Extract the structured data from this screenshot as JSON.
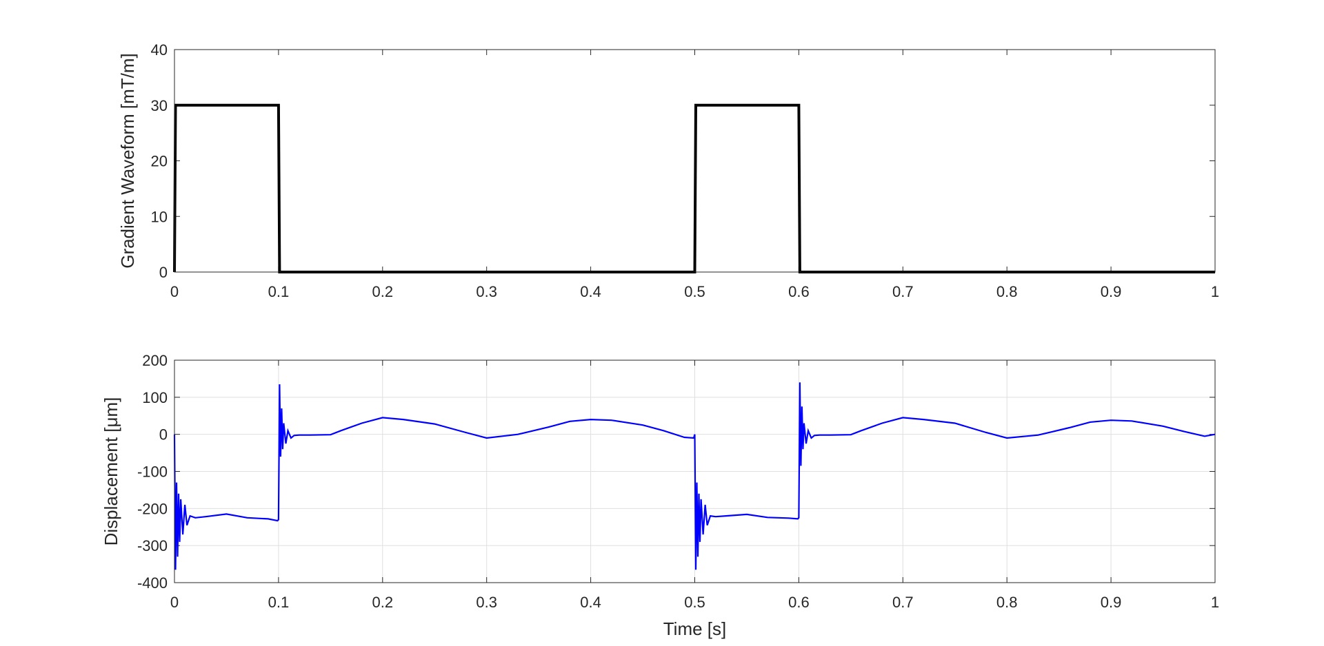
{
  "chart_data": [
    {
      "id": "gradient",
      "type": "line",
      "ylabel": "Gradient Waveform [mT/m]",
      "xlabel": "",
      "xlim": [
        0,
        1
      ],
      "ylim": [
        0,
        40
      ],
      "xticks": [
        0,
        0.1,
        0.2,
        0.3,
        0.4,
        0.5,
        0.6,
        0.7,
        0.8,
        0.9,
        1
      ],
      "xticklabels": [
        "0",
        "0.1",
        "0.2",
        "0.3",
        "0.4",
        "0.5",
        "0.6",
        "0.7",
        "0.8",
        "0.9",
        "1"
      ],
      "yticks": [
        0,
        10,
        20,
        30,
        40
      ],
      "yticklabels": [
        "0",
        "10",
        "20",
        "30",
        "40"
      ],
      "grid": false,
      "series": [
        {
          "color": "#000000",
          "x": [
            0,
            0.001,
            0.1,
            0.101,
            0.5,
            0.501,
            0.6,
            0.601,
            1
          ],
          "y": [
            0,
            30,
            30,
            0,
            0,
            30,
            30,
            0,
            0
          ]
        }
      ]
    },
    {
      "id": "displacement",
      "type": "line",
      "ylabel": "Displacement [μm]",
      "xlabel": "Time [s]",
      "xlim": [
        0,
        1
      ],
      "ylim": [
        -400,
        200
      ],
      "xticks": [
        0,
        0.1,
        0.2,
        0.3,
        0.4,
        0.5,
        0.6,
        0.7,
        0.8,
        0.9,
        1
      ],
      "xticklabels": [
        "0",
        "0.1",
        "0.2",
        "0.3",
        "0.4",
        "0.5",
        "0.6",
        "0.7",
        "0.8",
        "0.9",
        "1"
      ],
      "yticks": [
        -400,
        -300,
        -200,
        -100,
        0,
        100,
        200
      ],
      "yticklabels": [
        "-400",
        "-300",
        "-200",
        "-100",
        "0",
        "100",
        "200"
      ],
      "grid": true,
      "series": [
        {
          "color": "#0000ff",
          "x": [
            0,
            0.001,
            0.002,
            0.003,
            0.004,
            0.005,
            0.006,
            0.008,
            0.01,
            0.012,
            0.015,
            0.02,
            0.03,
            0.05,
            0.07,
            0.09,
            0.099,
            0.1,
            0.101,
            0.102,
            0.103,
            0.104,
            0.105,
            0.107,
            0.109,
            0.112,
            0.115,
            0.12,
            0.13,
            0.15,
            0.16,
            0.18,
            0.2,
            0.22,
            0.25,
            0.28,
            0.3,
            0.33,
            0.36,
            0.38,
            0.4,
            0.42,
            0.45,
            0.47,
            0.49,
            0.499,
            0.5,
            0.501,
            0.502,
            0.503,
            0.504,
            0.505,
            0.506,
            0.508,
            0.51,
            0.512,
            0.515,
            0.52,
            0.53,
            0.55,
            0.57,
            0.59,
            0.599,
            0.6,
            0.601,
            0.602,
            0.603,
            0.604,
            0.605,
            0.607,
            0.609,
            0.612,
            0.615,
            0.62,
            0.63,
            0.65,
            0.66,
            0.68,
            0.7,
            0.72,
            0.75,
            0.78,
            0.8,
            0.83,
            0.86,
            0.88,
            0.9,
            0.92,
            0.95,
            0.97,
            0.99,
            1.0
          ],
          "y": [
            0,
            -365,
            -130,
            -330,
            -160,
            -290,
            -175,
            -270,
            -190,
            -245,
            -220,
            -225,
            -222,
            -215,
            -225,
            -228,
            -233,
            -230,
            135,
            -60,
            70,
            -40,
            30,
            -25,
            10,
            -10,
            -3,
            -2,
            -2,
            -1,
            10,
            30,
            45,
            40,
            28,
            5,
            -10,
            0,
            20,
            35,
            40,
            38,
            25,
            10,
            -8,
            -10,
            0,
            -365,
            -130,
            -330,
            -160,
            -290,
            -175,
            -270,
            -190,
            -245,
            -220,
            -222,
            -220,
            -216,
            -224,
            -226,
            -228,
            -225,
            140,
            -85,
            75,
            -40,
            30,
            -25,
            10,
            -10,
            -3,
            -2,
            -2,
            -1,
            10,
            30,
            45,
            40,
            30,
            5,
            -10,
            -2,
            18,
            33,
            38,
            36,
            22,
            8,
            -5,
            0
          ]
        }
      ]
    }
  ]
}
